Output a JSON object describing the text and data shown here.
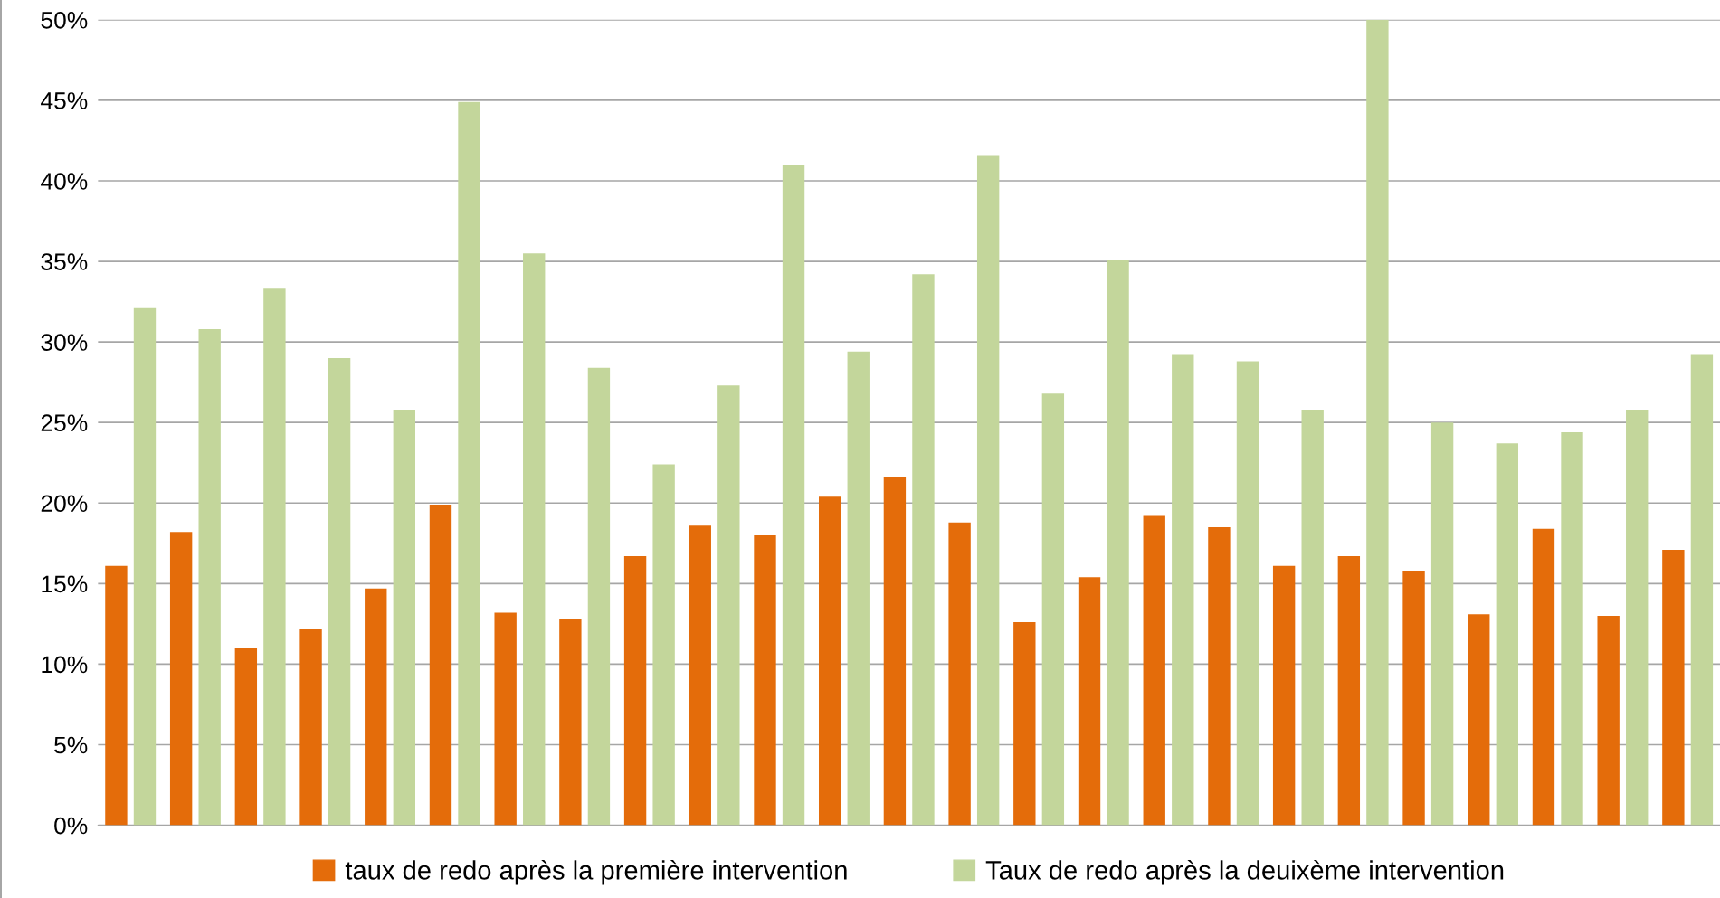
{
  "chart_data": {
    "type": "bar",
    "categories": [
      null,
      null,
      null,
      null,
      null,
      null,
      null,
      null,
      null,
      null,
      null,
      null,
      null,
      null,
      null,
      null,
      null,
      null,
      null,
      null,
      null,
      null,
      null,
      null,
      null
    ],
    "series": [
      {
        "name": "taux de redo après la première intervention",
        "color": "#e46c0a",
        "values": [
          16.1,
          18.2,
          11.0,
          12.2,
          14.7,
          19.9,
          13.2,
          12.8,
          16.7,
          18.6,
          18.0,
          20.4,
          21.6,
          18.8,
          12.6,
          15.4,
          19.2,
          18.5,
          16.1,
          16.7,
          15.8,
          13.1,
          18.4,
          13.0,
          17.1
        ]
      },
      {
        "name": "Taux de redo après la deuixème intervention",
        "color": "#c3d69b",
        "values": [
          32.1,
          30.8,
          33.3,
          29.0,
          25.8,
          44.9,
          35.5,
          28.4,
          22.4,
          27.3,
          41.0,
          29.4,
          34.2,
          41.6,
          26.8,
          35.1,
          29.2,
          28.8,
          25.8,
          50.0,
          25.0,
          23.7,
          24.4,
          25.8,
          29.2
        ]
      }
    ],
    "ylim": [
      0,
      50
    ],
    "yticks": [
      {
        "value": 0,
        "label": "0%"
      },
      {
        "value": 5,
        "label": "5%"
      },
      {
        "value": 10,
        "label": "10%"
      },
      {
        "value": 15,
        "label": "15%"
      },
      {
        "value": 20,
        "label": "20%"
      },
      {
        "value": 25,
        "label": "25%"
      },
      {
        "value": 30,
        "label": "30%"
      },
      {
        "value": 35,
        "label": "35%"
      },
      {
        "value": 40,
        "label": "40%"
      },
      {
        "value": 45,
        "label": "45%"
      },
      {
        "value": 50,
        "label": "50%"
      }
    ],
    "grid": "y",
    "legend": "bottom"
  }
}
